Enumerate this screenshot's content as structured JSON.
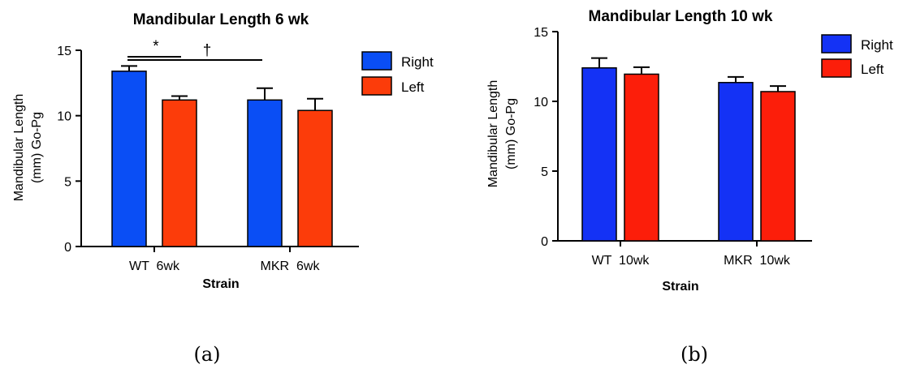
{
  "chart_data": [
    {
      "type": "bar",
      "title": "Mandibular Length 6 wk",
      "xlabel": "Strain",
      "ylabel": [
        "Mandibular Length",
        "(mm) Go-Pg"
      ],
      "ylim": [
        0,
        15
      ],
      "yticks": [
        0,
        5,
        10,
        15
      ],
      "categories": [
        "WT  6wk",
        "MKR  6wk"
      ],
      "series": [
        {
          "name": "Right",
          "values": [
            13.4,
            11.2
          ],
          "errors": [
            0.4,
            0.9
          ],
          "color": "#0a4ef5"
        },
        {
          "name": "Left",
          "values": [
            11.2,
            10.4
          ],
          "errors": [
            0.3,
            0.9
          ],
          "color": "#fc3c0a"
        }
      ],
      "annotations": [
        "*",
        "†"
      ],
      "legend": "right",
      "caption": "(a)"
    },
    {
      "type": "bar",
      "title": "Mandibular Length 10 wk",
      "xlabel": "Strain",
      "ylabel": [
        "Mandibular Length",
        "(mm) Go-Pg"
      ],
      "ylim": [
        0,
        15
      ],
      "yticks": [
        0,
        5,
        10,
        15
      ],
      "categories": [
        "WT  10wk",
        "MKR  10wk"
      ],
      "series": [
        {
          "name": "Right",
          "values": [
            12.4,
            11.35
          ],
          "errors": [
            0.7,
            0.4
          ],
          "color": "#1432f5"
        },
        {
          "name": "Left",
          "values": [
            11.95,
            10.7
          ],
          "errors": [
            0.5,
            0.4
          ],
          "color": "#fc1e0a"
        }
      ],
      "legend": "right",
      "caption": "(b)"
    }
  ]
}
